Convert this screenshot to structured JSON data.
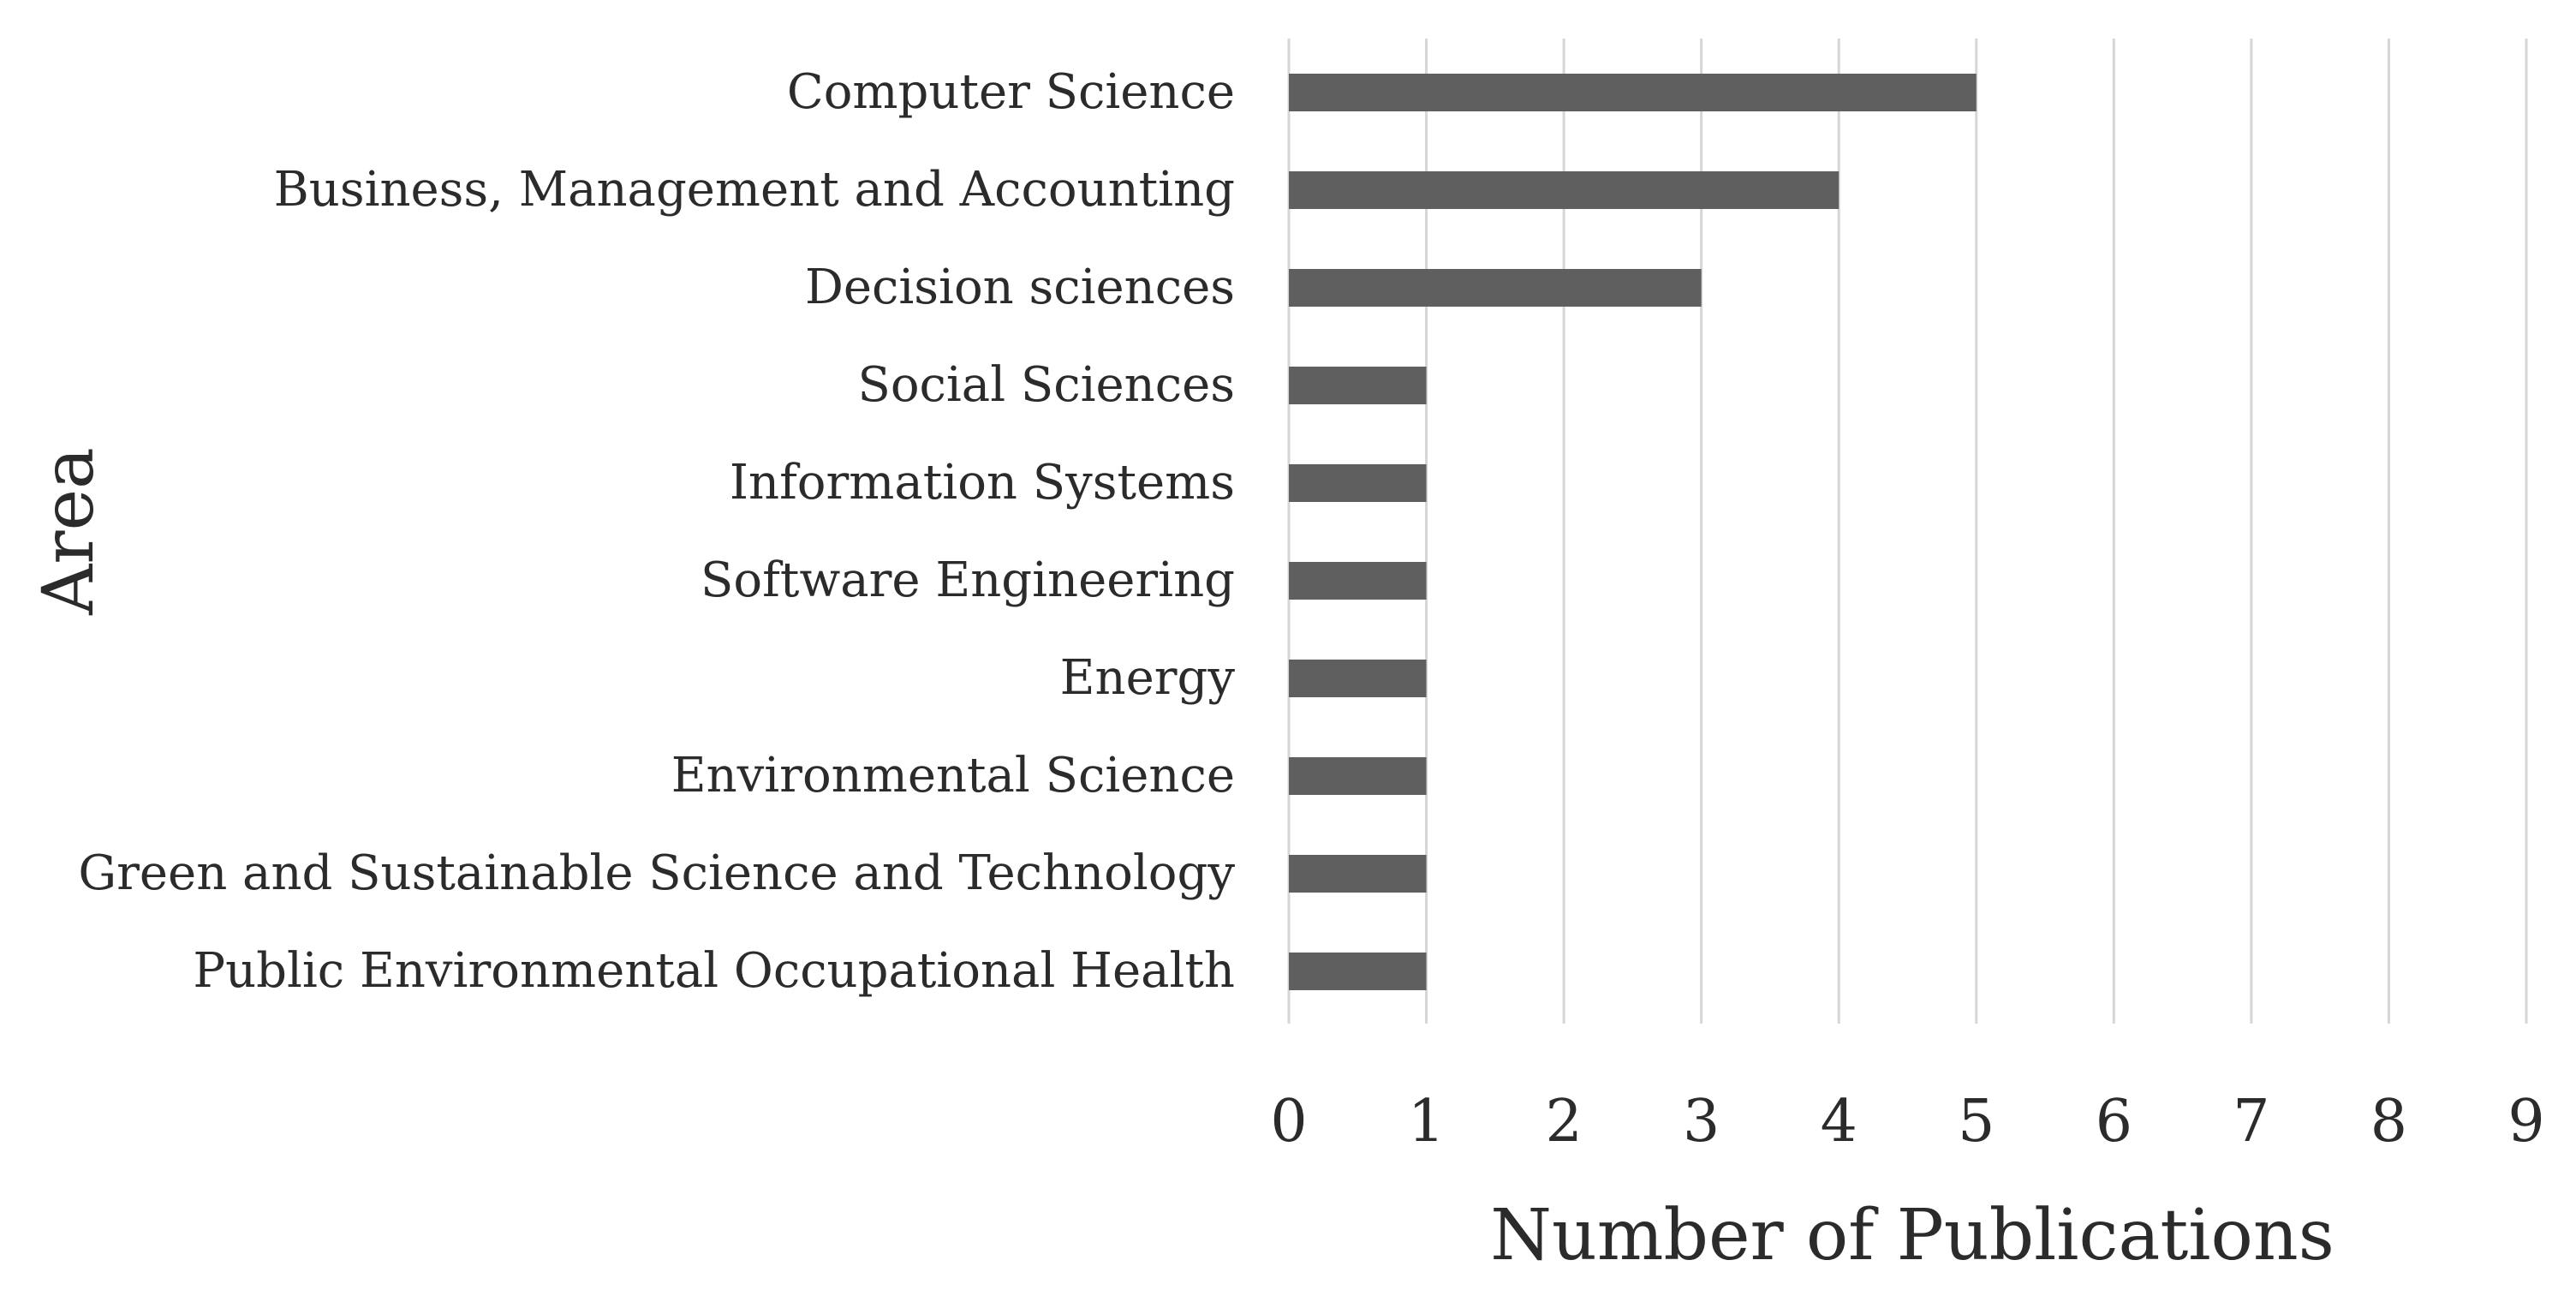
{
  "chart_data": {
    "type": "bar",
    "orientation": "horizontal",
    "categories": [
      "Computer Science",
      "Business, Management and Accounting",
      "Decision sciences",
      "Social Sciences",
      "Information Systems",
      "Software Engineering",
      "Energy",
      "Environmental Science",
      "Green and Sustainable Science and Technology",
      "Public Environmental Occupational Health"
    ],
    "values": [
      5,
      4,
      3,
      1,
      1,
      1,
      1,
      1,
      1,
      1
    ],
    "xlabel": "Number of Publications",
    "ylabel": "Area",
    "xlim": [
      0,
      9
    ],
    "x_ticks": [
      0,
      1,
      2,
      3,
      4,
      5,
      6,
      7,
      8,
      9
    ],
    "grid": true,
    "legend": "none",
    "colors": {
      "bar": "#5f5f5f",
      "grid": "#d6d6d6",
      "text": "#2b2b2b"
    }
  }
}
